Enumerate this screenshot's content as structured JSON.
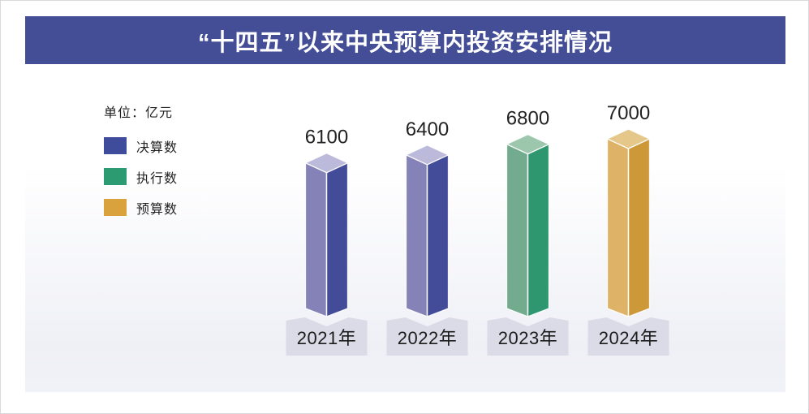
{
  "title": "“十四五”以来中央预算内投资安排情况",
  "title_bar_color": "#434E96",
  "unit_label": "单位：亿元",
  "legend": {
    "items": [
      {
        "label": "决算数",
        "color": "#3F4B9B"
      },
      {
        "label": "执行数",
        "color": "#2D9B72"
      },
      {
        "label": "预算数",
        "color": "#D9A23C"
      }
    ]
  },
  "chart_data": {
    "type": "bar",
    "title": "“十四五”以来中央预算内投资安排情况",
    "unit": "亿元",
    "categories": [
      "2021年",
      "2022年",
      "2023年",
      "2024年"
    ],
    "values": [
      6100,
      6400,
      6800,
      7000
    ],
    "bar_series": [
      "决算数",
      "决算数",
      "执行数",
      "预算数"
    ],
    "series_styles": {
      "决算数": {
        "left": "#8582B7",
        "right": "#434C98",
        "top": "#BCBADA"
      },
      "执行数": {
        "left": "#72AB8D",
        "right": "#2F9770",
        "top": "#9CC7AD"
      },
      "预算数": {
        "left": "#DFB367",
        "right": "#CD9838",
        "top": "#E5C789"
      }
    },
    "pedestal_color": "#DBDAE7",
    "label_color": "#222222",
    "ylim": [
      0,
      7000
    ],
    "grid": false,
    "legend_position": "upper-left",
    "value_labels_shown": true
  }
}
